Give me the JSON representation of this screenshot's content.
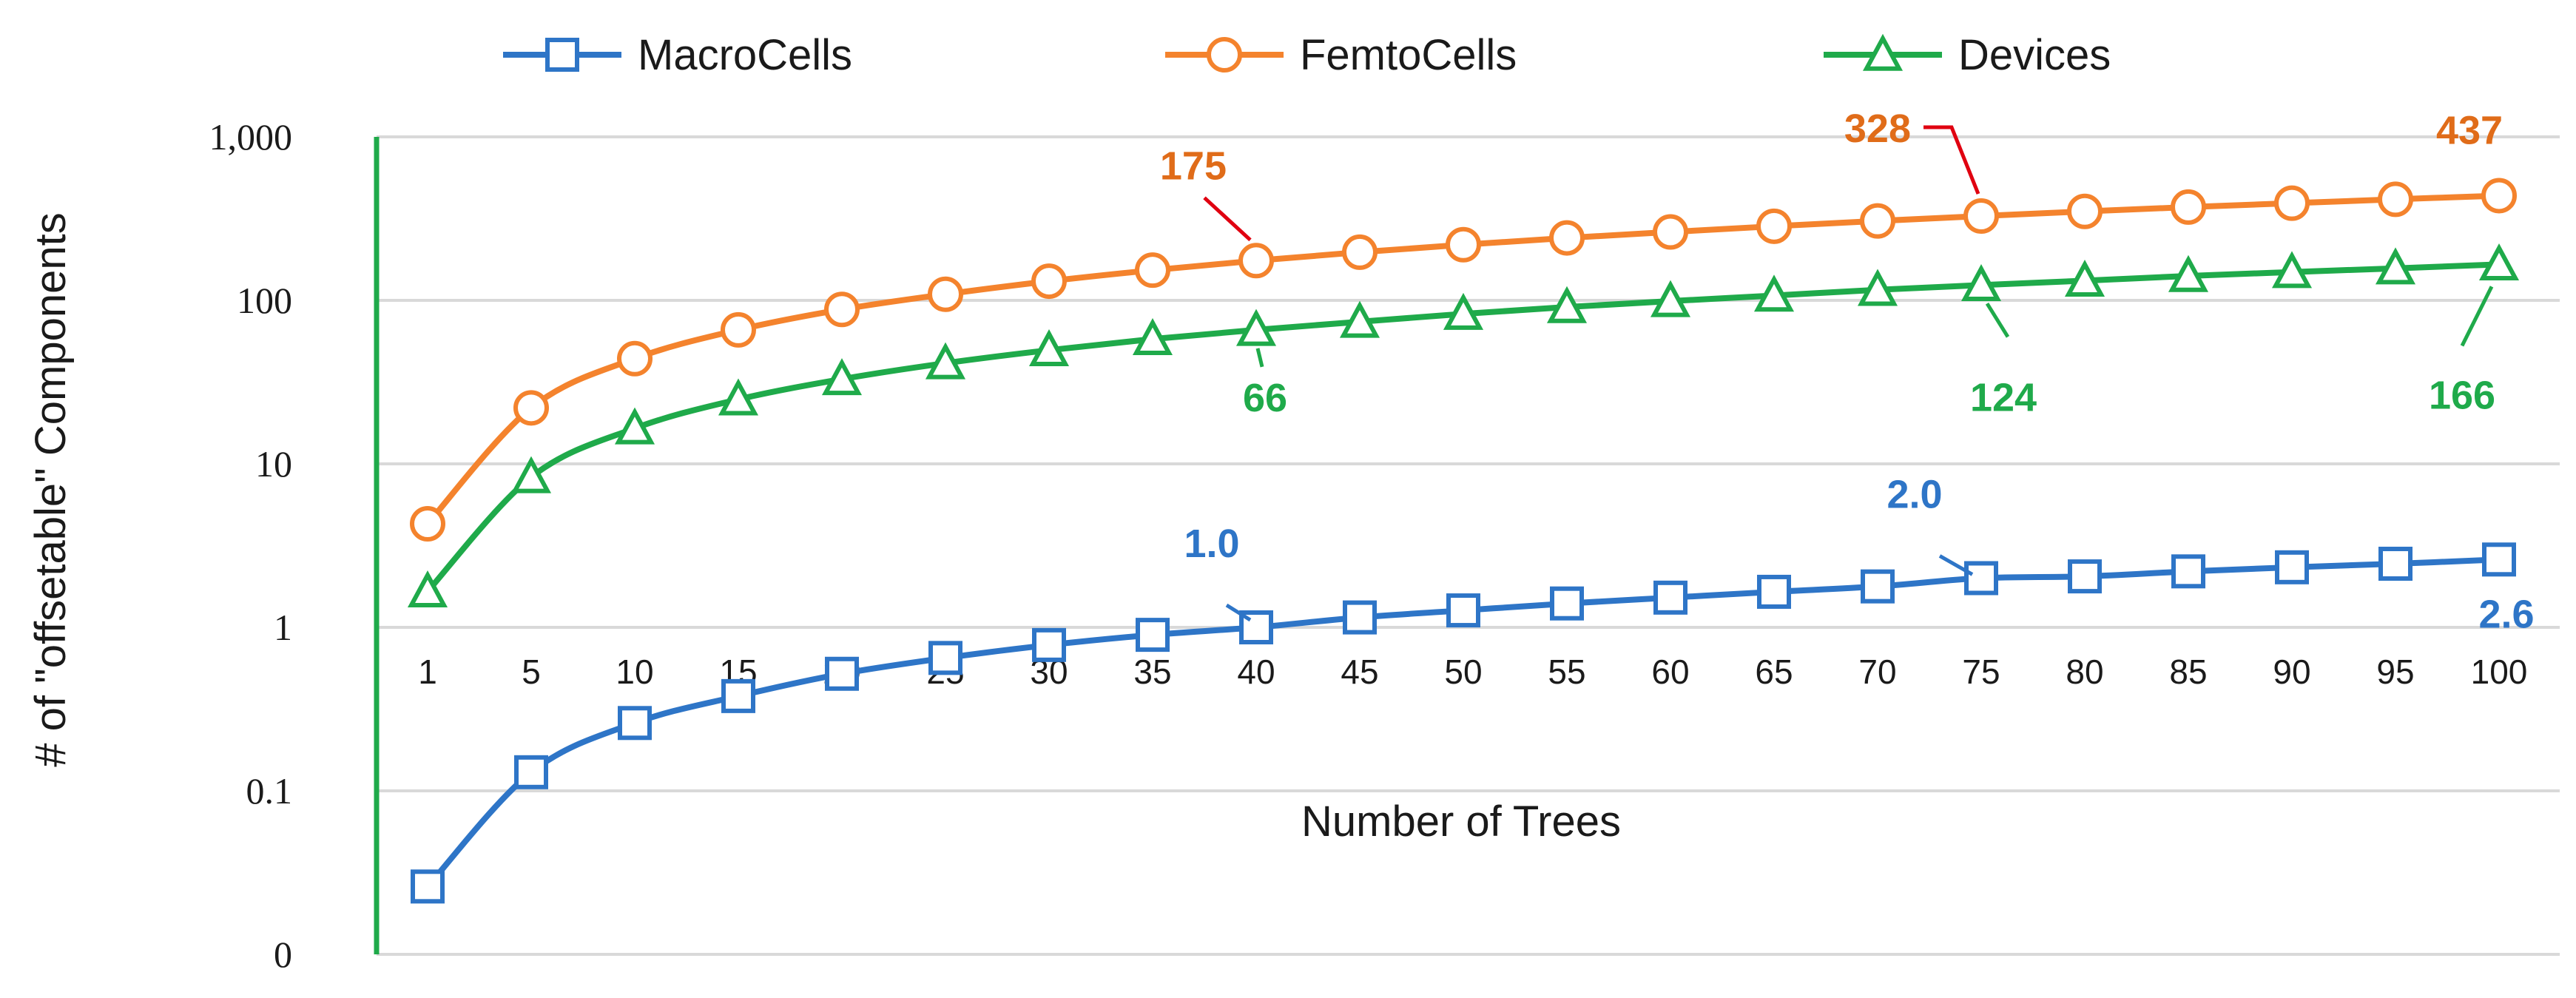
{
  "chart_data": {
    "type": "line",
    "title": "",
    "xlabel": "Number of Trees",
    "ylabel": "# of \"offsetable\" Components",
    "yscale": "log",
    "ylim": [
      0.01,
      1000
    ],
    "y_ticks": [
      {
        "value": 1000,
        "label": "1,000"
      },
      {
        "value": 100,
        "label": "100"
      },
      {
        "value": 10,
        "label": "10"
      },
      {
        "value": 1,
        "label": "1"
      },
      {
        "value": 0.1,
        "label": "0.1"
      },
      {
        "value": 0.01,
        "label": "0"
      }
    ],
    "grid": true,
    "legend_position": "top",
    "x": [
      "1",
      "5",
      "10",
      "15",
      "20",
      "25",
      "30",
      "35",
      "40",
      "45",
      "50",
      "55",
      "60",
      "65",
      "70",
      "75",
      "80",
      "85",
      "90",
      "95",
      "100"
    ],
    "series": [
      {
        "name": "MacroCells",
        "color": "#2E75C7",
        "marker": "square",
        "values": [
          0.026,
          0.13,
          0.26,
          0.38,
          0.52,
          0.65,
          0.78,
          0.9,
          1.0,
          1.15,
          1.27,
          1.4,
          1.52,
          1.65,
          1.78,
          2.0,
          2.05,
          2.2,
          2.33,
          2.45,
          2.6
        ]
      },
      {
        "name": "FemtoCells",
        "color": "#F4832D",
        "marker": "circle",
        "values": [
          4.3,
          22,
          44,
          66,
          88,
          109,
          131,
          153,
          175,
          197,
          219,
          241,
          262,
          284,
          306,
          328,
          350,
          372,
          393,
          415,
          437
        ]
      },
      {
        "name": "Devices",
        "color": "#1FAA4A",
        "marker": "triangle",
        "values": [
          1.66,
          8.3,
          16.5,
          24.8,
          33,
          41.3,
          49.6,
          58,
          66,
          74,
          82.7,
          91,
          99,
          107,
          116,
          124,
          132,
          141,
          149,
          157,
          166
        ]
      }
    ],
    "annotations": [
      {
        "text": "175",
        "series": "FemtoCells",
        "x": "40",
        "color": "#E06C19"
      },
      {
        "text": "328",
        "series": "FemtoCells",
        "x": "75",
        "color": "#E06C19"
      },
      {
        "text": "437",
        "series": "FemtoCells",
        "x": "100",
        "color": "#E06C19"
      },
      {
        "text": "66",
        "series": "Devices",
        "x": "40",
        "color": "#1FAA4A"
      },
      {
        "text": "124",
        "series": "Devices",
        "x": "75",
        "color": "#1FAA4A"
      },
      {
        "text": "166",
        "series": "Devices",
        "x": "100",
        "color": "#1FAA4A"
      },
      {
        "text": "1.0",
        "series": "MacroCells",
        "x": "40",
        "color": "#2E75C7"
      },
      {
        "text": "2.0",
        "series": "MacroCells",
        "x": "75",
        "color": "#2E75C7"
      },
      {
        "text": "2.6",
        "series": "MacroCells",
        "x": "100",
        "color": "#2E75C7"
      }
    ]
  }
}
